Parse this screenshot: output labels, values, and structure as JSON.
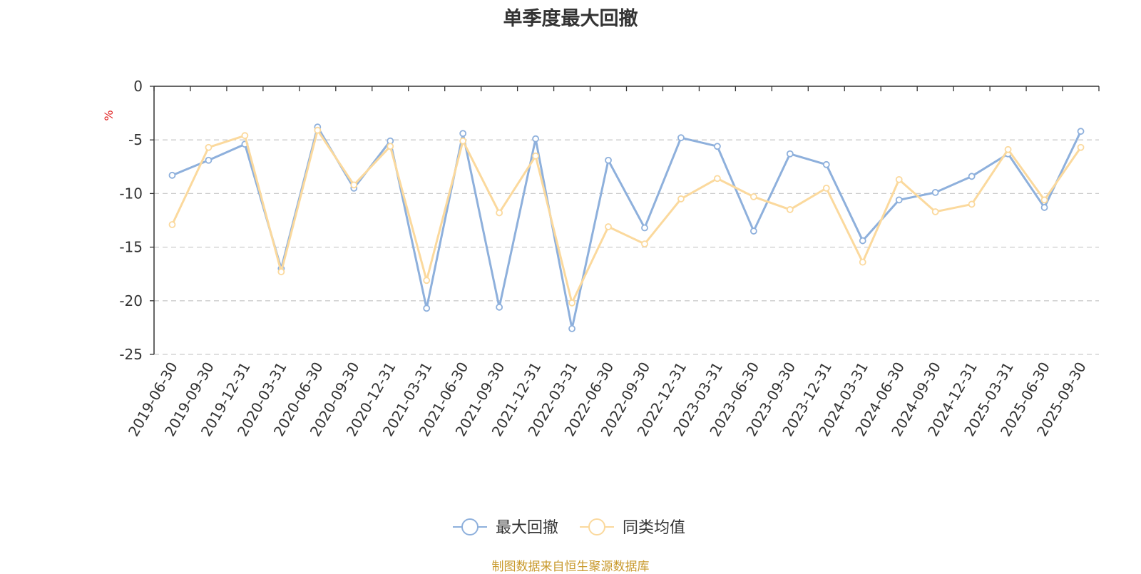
{
  "chart_data": {
    "type": "line",
    "title": "单季度最大回撤",
    "ylabel": "%",
    "ylim": [
      -25,
      0
    ],
    "yticks": [
      0,
      -5,
      -10,
      -15,
      -20,
      -25
    ],
    "grid": true,
    "legend_position": "bottom",
    "categories": [
      "2019-06-30",
      "2019-09-30",
      "2019-12-31",
      "2020-03-31",
      "2020-06-30",
      "2020-09-30",
      "2020-12-31",
      "2021-03-31",
      "2021-06-30",
      "2021-09-30",
      "2021-12-31",
      "2022-03-31",
      "2022-06-30",
      "2022-09-30",
      "2022-12-31",
      "2023-03-31",
      "2023-06-30",
      "2023-09-30",
      "2023-12-31",
      "2024-03-31",
      "2024-06-30",
      "2024-09-30",
      "2024-12-31",
      "2025-03-31",
      "2025-06-30",
      "2025-09-30"
    ],
    "series": [
      {
        "name": "最大回撤",
        "color": "#8eb0dc",
        "values": [
          -8.3,
          -6.9,
          -5.4,
          -17.0,
          -3.8,
          -9.5,
          -5.1,
          -20.7,
          -4.4,
          -20.6,
          -4.9,
          -22.6,
          -6.9,
          -13.2,
          -4.8,
          -5.6,
          -13.5,
          -6.3,
          -7.3,
          -14.4,
          -10.6,
          -9.9,
          -8.4,
          -6.3,
          -11.3,
          -4.2
        ]
      },
      {
        "name": "同类均值",
        "color": "#fbd99d",
        "values": [
          -12.9,
          -5.7,
          -4.6,
          -17.3,
          -4.1,
          -9.2,
          -5.6,
          -18.1,
          -5.1,
          -11.8,
          -6.5,
          -20.2,
          -13.1,
          -14.7,
          -10.5,
          -8.6,
          -10.3,
          -11.5,
          -9.5,
          -16.4,
          -8.7,
          -11.7,
          -11.0,
          -5.9,
          -10.6,
          -5.7
        ]
      }
    ]
  },
  "source_text": "制图数据来自恒生聚源数据库",
  "colors": {
    "source": "#c99a2e",
    "axis": "#333333",
    "grid": "#cccccc",
    "unit": "#e02020"
  }
}
